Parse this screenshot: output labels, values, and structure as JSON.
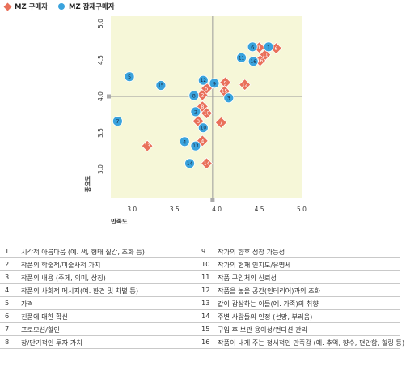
{
  "legend": {
    "diamond_label": "MZ 구매자",
    "circle_label": "MZ 잠재구매자"
  },
  "colors": {
    "buyer": "#e9705a",
    "potential": "#3aa3dd",
    "plot_bg": "#f6f7d8",
    "crosshair": "#9a9a9a"
  },
  "chart_data": {
    "type": "scatter",
    "xlabel": "만족도",
    "ylabel": "중요도",
    "xlim": [
      2.75,
      5.0
    ],
    "ylim": [
      2.6,
      5.1
    ],
    "xticks": [
      "3.0",
      "3.5",
      "4.0",
      "4.5",
      "5.0"
    ],
    "yticks": [
      "3.0",
      "3.5",
      "4.0",
      "4.5",
      "5.0"
    ],
    "reference_lines": {
      "x": 3.95,
      "y": 4.0
    },
    "grid": false,
    "legend_position": "top-left",
    "series": [
      {
        "name": "MZ 구매자",
        "marker": "diamond",
        "points": [
          {
            "label": "1",
            "x": 4.5,
            "y": 4.67
          },
          {
            "label": "2",
            "x": 3.83,
            "y": 4.02
          },
          {
            "label": "3",
            "x": 3.78,
            "y": 3.66
          },
          {
            "label": "4",
            "x": 3.83,
            "y": 3.39
          },
          {
            "label": "5",
            "x": 3.88,
            "y": 4.11
          },
          {
            "label": "6",
            "x": 4.7,
            "y": 4.66
          },
          {
            "label": "7",
            "x": 4.05,
            "y": 3.64
          },
          {
            "label": "8",
            "x": 3.83,
            "y": 3.86
          },
          {
            "label": "9",
            "x": 4.1,
            "y": 4.19
          },
          {
            "label": "10",
            "x": 3.88,
            "y": 3.77
          },
          {
            "label": "11",
            "x": 4.57,
            "y": 4.57
          },
          {
            "label": "12",
            "x": 4.33,
            "y": 4.16
          },
          {
            "label": "13",
            "x": 3.18,
            "y": 3.32
          },
          {
            "label": "14",
            "x": 3.88,
            "y": 3.08
          },
          {
            "label": "15",
            "x": 4.09,
            "y": 4.07
          },
          {
            "label": "16",
            "x": 4.51,
            "y": 4.49
          }
        ]
      },
      {
        "name": "MZ 잠재구매자",
        "marker": "circle",
        "points": [
          {
            "label": "1",
            "x": 4.61,
            "y": 4.68
          },
          {
            "label": "2",
            "x": 3.75,
            "y": 3.79
          },
          {
            "label": "3",
            "x": 4.14,
            "y": 3.98
          },
          {
            "label": "4",
            "x": 3.62,
            "y": 3.38
          },
          {
            "label": "5",
            "x": 2.97,
            "y": 4.27
          },
          {
            "label": "6",
            "x": 4.42,
            "y": 4.68
          },
          {
            "label": "7",
            "x": 2.83,
            "y": 3.66
          },
          {
            "label": "8",
            "x": 3.73,
            "y": 4.01
          },
          {
            "label": "9",
            "x": 3.97,
            "y": 4.18
          },
          {
            "label": "10",
            "x": 3.84,
            "y": 3.57
          },
          {
            "label": "11",
            "x": 4.29,
            "y": 4.53
          },
          {
            "label": "12",
            "x": 3.84,
            "y": 4.22
          },
          {
            "label": "13",
            "x": 3.75,
            "y": 3.32
          },
          {
            "label": "14",
            "x": 3.68,
            "y": 3.08
          },
          {
            "label": "15",
            "x": 3.34,
            "y": 4.15
          },
          {
            "label": "16",
            "x": 4.43,
            "y": 4.48
          }
        ]
      }
    ]
  },
  "items": [
    {
      "num": "1",
      "text": "시각적 아름다움 (예. 색, 형태 질감, 조화 등)"
    },
    {
      "num": "2",
      "text": "작품의 학술적/미술사적 가치"
    },
    {
      "num": "3",
      "text": "작품의 내용 (주제, 의미, 상징)"
    },
    {
      "num": "4",
      "text": "작품의 사회적 메시지(예. 환경 및 차별 등)"
    },
    {
      "num": "5",
      "text": "가격"
    },
    {
      "num": "6",
      "text": "진품에 대한 확신"
    },
    {
      "num": "7",
      "text": "프로모션/할인"
    },
    {
      "num": "8",
      "text": "장/단기적인 투자 가치"
    },
    {
      "num": "9",
      "text": "작가의 향후 성장 가능성"
    },
    {
      "num": "10",
      "text": "작가의 현재 인지도/유명세"
    },
    {
      "num": "11",
      "text": "작품 구입처의 신뢰성"
    },
    {
      "num": "12",
      "text": "작품을 놓을 공간(인테리어)과의 조화"
    },
    {
      "num": "13",
      "text": "같이 감상하는 이들(예. 가족)의 취향"
    },
    {
      "num": "14",
      "text": "주변 사람들의 인정 (선망, 부러움)"
    },
    {
      "num": "15",
      "text": "구입 후 보관 용이성/컨디션 관리"
    },
    {
      "num": "16",
      "text": "작품이 내게 주는 정서적인 만족감 (예. 추억, 향수, 편안함, 힐링 등)"
    }
  ]
}
